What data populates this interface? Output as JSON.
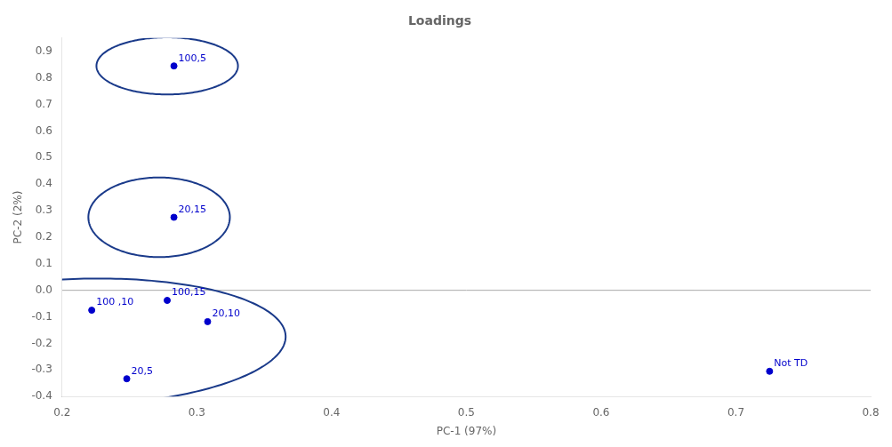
{
  "chart_data": {
    "type": "scatter",
    "title": "Loadings",
    "x_label": "PC-1 (97%)",
    "y_label": "PC-2 (2%)",
    "x": [
      0.283,
      0.283,
      0.222,
      0.278,
      0.308,
      0.248,
      0.725
    ],
    "values": [
      0.845,
      0.275,
      -0.075,
      -0.038,
      -0.118,
      -0.333,
      -0.305
    ],
    "point_labels": [
      "100,5",
      "20,15",
      "100 ,10",
      "100,15",
      "20,10",
      "20,5",
      "Not TD"
    ],
    "color": "#0000cc",
    "ellipses": [
      {
        "cx": 0.278,
        "cy": 0.845,
        "width": 0.105,
        "height": 0.215,
        "angle": 0,
        "color": "#1a3a8a"
      },
      {
        "cx": 0.272,
        "cy": 0.275,
        "width": 0.105,
        "height": 0.3,
        "angle": 0,
        "color": "#1a3a8a"
      },
      {
        "cx": 0.215,
        "cy": -0.195,
        "width": 0.3,
        "height": 0.48,
        "angle": -5,
        "color": "#1a3a8a"
      }
    ],
    "hline": {
      "y": 0.0,
      "color": "#aaaaaa"
    },
    "xlim": [
      0.2,
      0.8
    ],
    "ylim": [
      -0.4,
      0.95
    ],
    "xticks": [
      0.2,
      0.3,
      0.4,
      0.5,
      0.6,
      0.7,
      0.8
    ],
    "yticks": [
      -0.4,
      -0.3,
      -0.2,
      -0.1,
      {
        "value": 0.0,
        "label": "0.0"
      },
      0.1,
      0.2,
      0.3,
      0.4,
      0.5,
      0.6,
      0.7,
      0.8,
      0.9
    ],
    "grid": false
  }
}
